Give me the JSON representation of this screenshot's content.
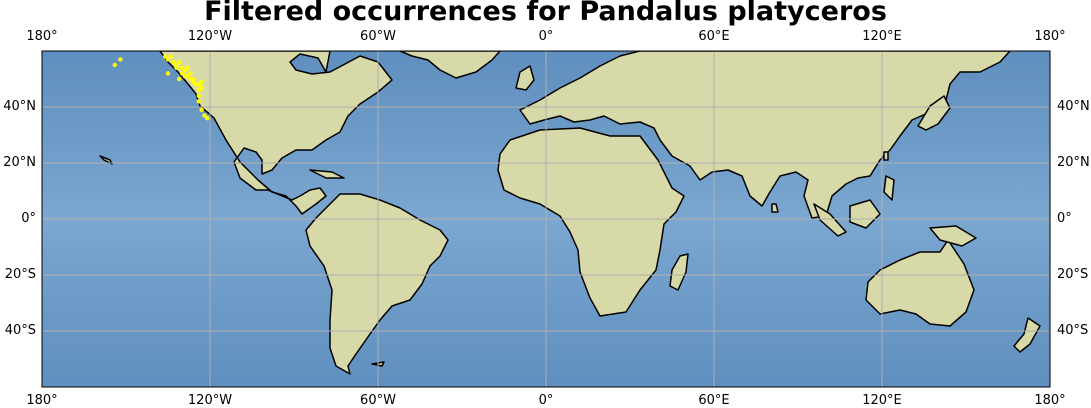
{
  "title": "Filtered occurrences for Pandalus platyceros",
  "lon_labels": [
    {
      "value": -180,
      "label": "180°"
    },
    {
      "value": -120,
      "label": "120°W"
    },
    {
      "value": -60,
      "label": "60°W"
    },
    {
      "value": 0,
      "label": "0°"
    },
    {
      "value": 60,
      "label": "60°E"
    },
    {
      "value": 120,
      "label": "120°E"
    },
    {
      "value": 180,
      "label": "180°"
    }
  ],
  "lat_labels": [
    {
      "value": 40,
      "label": "40°N"
    },
    {
      "value": 20,
      "label": "20°N"
    },
    {
      "value": 0,
      "label": "0°"
    },
    {
      "value": -20,
      "label": "20°S"
    },
    {
      "value": -40,
      "label": "40°S"
    }
  ],
  "extent": {
    "lon": [
      -180,
      180
    ],
    "lat": [
      -60,
      60
    ]
  },
  "colors": {
    "ocean": "#7ba7d0",
    "land": "#d8d9a8",
    "coastline": "#000000",
    "gridline": "#b0b0b0",
    "occurrence": "#ffff00"
  },
  "chart_data": {
    "type": "scatter",
    "title": "Filtered occurrences for Pandalus platyceros",
    "points": [
      {
        "lon": -154,
        "lat": 55
      },
      {
        "lon": -152,
        "lat": 57
      },
      {
        "lon": -136,
        "lat": 58
      },
      {
        "lon": -134,
        "lat": 58
      },
      {
        "lon": -135,
        "lat": 57
      },
      {
        "lon": -133,
        "lat": 56
      },
      {
        "lon": -132,
        "lat": 55
      },
      {
        "lon": -131,
        "lat": 56
      },
      {
        "lon": -130,
        "lat": 54
      },
      {
        "lon": -129,
        "lat": 53
      },
      {
        "lon": -128,
        "lat": 51
      },
      {
        "lon": -127,
        "lat": 50
      },
      {
        "lon": -126,
        "lat": 49
      },
      {
        "lon": -125,
        "lat": 48
      },
      {
        "lon": -124,
        "lat": 48
      },
      {
        "lon": -123,
        "lat": 49
      },
      {
        "lon": -123,
        "lat": 47
      },
      {
        "lon": -124,
        "lat": 46
      },
      {
        "lon": -124,
        "lat": 44
      },
      {
        "lon": -124,
        "lat": 42
      },
      {
        "lon": -123,
        "lat": 39
      },
      {
        "lon": -122,
        "lat": 37
      },
      {
        "lon": -121,
        "lat": 36
      },
      {
        "lon": -128,
        "lat": 54
      },
      {
        "lon": -127,
        "lat": 52
      },
      {
        "lon": -126,
        "lat": 50
      },
      {
        "lon": -132,
        "lat": 54
      },
      {
        "lon": -130,
        "lat": 52
      },
      {
        "lon": -129,
        "lat": 51
      },
      {
        "lon": -135,
        "lat": 52
      },
      {
        "lon": -131,
        "lat": 50
      }
    ]
  }
}
